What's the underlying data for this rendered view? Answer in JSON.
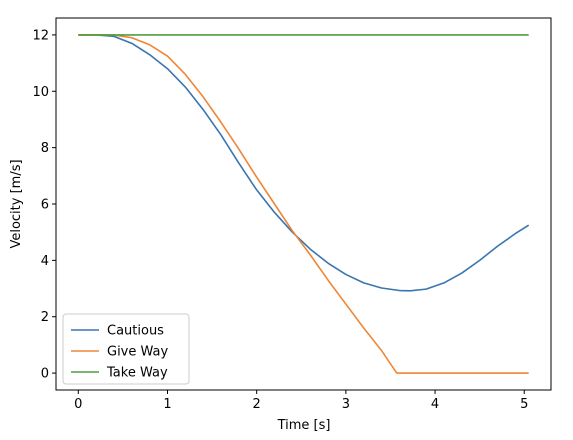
{
  "chart_data": {
    "type": "line",
    "xlabel": "Time [s]",
    "ylabel": "Velocity [m/s]",
    "xlim": [
      -0.25,
      5.3
    ],
    "ylim": [
      -0.6,
      12.6
    ],
    "xticks": [
      0,
      1,
      2,
      3,
      4,
      5
    ],
    "xtick_labels": [
      "0",
      "1",
      "2",
      "3",
      "4",
      "5"
    ],
    "yticks": [
      0,
      2,
      4,
      6,
      8,
      10,
      12
    ],
    "ytick_labels": [
      "0",
      "2",
      "4",
      "6",
      "8",
      "10",
      "12"
    ],
    "grid": false,
    "legend_position": "lower-left",
    "series": [
      {
        "name": "Cautious",
        "color": "#3a75af",
        "x": [
          0,
          0.2,
          0.4,
          0.6,
          0.8,
          1.0,
          1.2,
          1.4,
          1.6,
          1.8,
          2.0,
          2.2,
          2.4,
          2.6,
          2.8,
          3.0,
          3.2,
          3.4,
          3.6,
          3.72,
          3.9,
          4.1,
          4.3,
          4.5,
          4.7,
          4.9,
          5.05
        ],
        "y": [
          12.0,
          12.0,
          11.95,
          11.7,
          11.3,
          10.8,
          10.15,
          9.35,
          8.45,
          7.45,
          6.5,
          5.7,
          5.0,
          4.4,
          3.9,
          3.5,
          3.2,
          3.02,
          2.93,
          2.92,
          2.98,
          3.2,
          3.55,
          4.0,
          4.5,
          4.95,
          5.25
        ]
      },
      {
        "name": "Give Way",
        "color": "#ef8636",
        "x": [
          0,
          0.2,
          0.4,
          0.6,
          0.8,
          1.0,
          1.2,
          1.4,
          1.6,
          1.8,
          2.0,
          2.2,
          2.4,
          2.6,
          2.8,
          3.0,
          3.2,
          3.4,
          3.57,
          3.8,
          4.2,
          4.6,
          5.05
        ],
        "y": [
          12.0,
          12.0,
          12.0,
          11.9,
          11.65,
          11.25,
          10.6,
          9.8,
          8.9,
          7.95,
          6.95,
          6.0,
          5.05,
          4.2,
          3.3,
          2.45,
          1.6,
          0.8,
          0.0,
          0.0,
          0.0,
          0.0,
          0.0
        ]
      },
      {
        "name": "Take Way",
        "color": "#519d3e",
        "x": [
          0,
          5.05
        ],
        "y": [
          12.0,
          12.0
        ]
      }
    ]
  }
}
